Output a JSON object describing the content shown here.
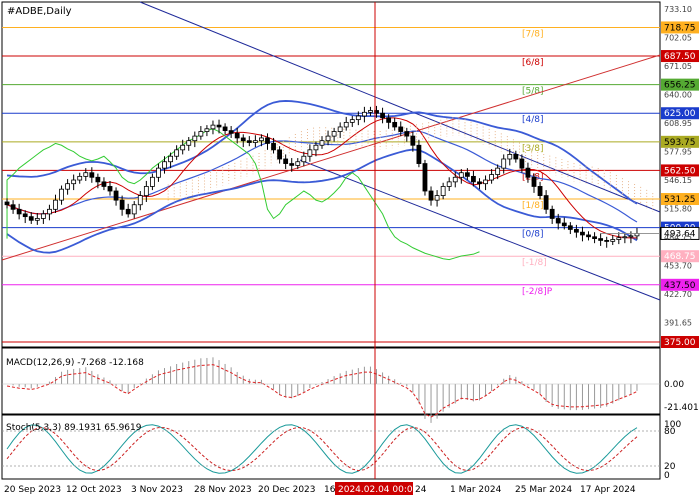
{
  "title": "#ADBE,Daily",
  "colors": {
    "background": "#ffffff",
    "grid": "#c8c8c8",
    "candle": "#000000",
    "bb": "#3b5bd6",
    "ichimoku_cloud": "#e8b890",
    "tenkan": "#cc0000",
    "kijun": "#3366cc",
    "chikou": "#33cc33",
    "channel": "#1f2a9a",
    "trend_red": "#d03030",
    "macd_signal": "#dd2222",
    "stoch_main": "#1a9a9a",
    "stoch_signal": "#cc2222",
    "vline": "#cc0000",
    "current_price": "#ffffff"
  },
  "price_axis": {
    "ticks": [
      "733.10",
      "702.05",
      "671.05",
      "640.00",
      "608.95",
      "577.95",
      "546.15",
      "515.80",
      "484.75",
      "453.70",
      "422.70",
      "391.65"
    ],
    "labels": [
      {
        "text": "718.75",
        "price": 718.75,
        "bg": "#ffb020",
        "fg": "#000000"
      },
      {
        "text": "687.50",
        "price": 687.5,
        "bg": "#cc0000",
        "fg": "#ffffff"
      },
      {
        "text": "656.25",
        "price": 656.25,
        "bg": "#55aa33",
        "fg": "#000000"
      },
      {
        "text": "625.00",
        "price": 625,
        "bg": "#1a3ccc",
        "fg": "#ffffff"
      },
      {
        "text": "593.75",
        "price": 593.75,
        "bg": "#aaaa22",
        "fg": "#000000"
      },
      {
        "text": "562.50",
        "price": 562.5,
        "bg": "#cc0000",
        "fg": "#ffffff"
      },
      {
        "text": "531.25",
        "price": 531.25,
        "bg": "#ffb020",
        "fg": "#000000"
      },
      {
        "text": "500.00",
        "price": 500,
        "bg": "#1a3ccc",
        "fg": "#ffffff"
      },
      {
        "text": "493.64",
        "price": 493.64,
        "bg": "#ffffff",
        "fg": "#000000"
      },
      {
        "text": "468.75",
        "price": 468.75,
        "bg": "#ffb0c0",
        "fg": "#ffffff"
      },
      {
        "text": "437.50",
        "price": 437.5,
        "bg": "#ee22ee",
        "fg": "#000000"
      },
      {
        "text": "375.00",
        "price": 375,
        "bg": "#cc0000",
        "fg": "#ffffff"
      }
    ]
  },
  "murrey_levels": [
    {
      "label": "[7/8]",
      "price": 718.75,
      "color": "#ffb020"
    },
    {
      "label": "[6/8]",
      "price": 687.5,
      "color": "#cc0000"
    },
    {
      "label": "[5/8]",
      "price": 656.25,
      "color": "#55aa33"
    },
    {
      "label": "[4/8]",
      "price": 625,
      "color": "#1a3ccc"
    },
    {
      "label": "[3/8]",
      "price": 593.75,
      "color": "#aaaa22"
    },
    {
      "label": "[2/8]",
      "price": 562.5,
      "color": "#cc0000"
    },
    {
      "label": "[1/8]",
      "price": 531.25,
      "color": "#ffb020"
    },
    {
      "label": "[0/8]",
      "price": 500,
      "color": "#1a3ccc"
    },
    {
      "label": "[-1/8]",
      "price": 468.75,
      "color": "#ffb0c0"
    },
    {
      "label": "[-2/8]P",
      "price": 437.5,
      "color": "#ee22ee"
    },
    {
      "label": "",
      "price": 375,
      "color": "#cc0000"
    }
  ],
  "macd": {
    "label": "MACD(12,26,9) -7.268 -12.168",
    "ticks": [
      "0.00",
      "-21.401"
    ]
  },
  "stoch": {
    "label": "Stoch(5,3,3) 89.1931 65.9619",
    "ticks": [
      "100",
      "80",
      "20",
      "0"
    ]
  },
  "x_axis": {
    "labels": [
      "20 Sep 2023",
      "12 Oct 2023",
      "3 Nov 2023",
      "28 Nov 2023",
      "20 Dec 2023",
      "16",
      "24",
      "1 Mar 2024",
      "25 Mar 2024",
      "17 Apr 2024"
    ],
    "highlight": "2024.02.04 00:00"
  },
  "chart_data": {
    "type": "candlestick",
    "title": "#ADBE,Daily",
    "ylim": [
      375,
      740
    ],
    "closes": [
      525,
      520,
      515,
      512,
      508,
      510,
      515,
      520,
      530,
      542,
      548,
      552,
      556,
      560,
      555,
      550,
      545,
      540,
      530,
      520,
      515,
      525,
      535,
      545,
      555,
      565,
      572,
      578,
      585,
      590,
      595,
      600,
      605,
      608,
      612,
      610,
      606,
      603,
      598,
      595,
      593,
      595,
      598,
      592,
      585,
      575,
      570,
      568,
      572,
      578,
      585,
      590,
      595,
      600,
      605,
      610,
      615,
      618,
      622,
      626,
      628,
      625,
      620,
      615,
      610,
      605,
      600,
      590,
      570,
      540,
      530,
      535,
      545,
      550,
      555,
      560,
      556,
      550,
      548,
      552,
      558,
      565,
      575,
      580,
      575,
      565,
      555,
      545,
      535,
      520,
      510,
      505,
      502,
      498,
      495,
      492,
      490,
      488,
      486,
      485,
      487,
      489,
      490,
      491,
      493.64
    ],
    "price_levels": [
      718.75,
      687.5,
      656.25,
      625,
      593.75,
      562.5,
      531.25,
      500,
      468.75,
      437.5,
      375
    ],
    "current_price": 493.64,
    "macd": {
      "main": -7.268,
      "signal": -12.168
    },
    "stoch": {
      "main": 89.1931,
      "signal": 65.9619
    }
  }
}
